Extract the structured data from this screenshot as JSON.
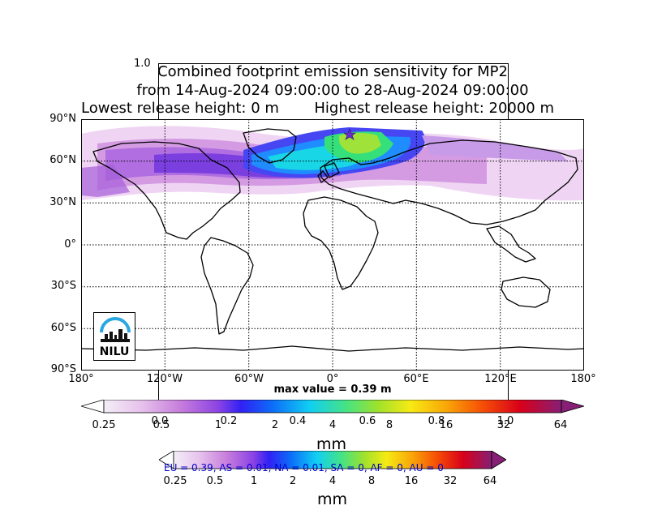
{
  "ghost_axis_top": "1.0",
  "title": {
    "line1": "Combined footprint emission sensitivity for MP2",
    "line2": "from 14-Aug-2024 09:00:00 to 28-Aug-2024 09:00:00",
    "line3_left": "Lowest release height: 0 m",
    "line3_right": "Highest release height: 20000 m"
  },
  "map": {
    "lat_labels": [
      "90°N",
      "60°N",
      "30°N",
      "0°",
      "30°S",
      "60°S",
      "90°S"
    ],
    "lon_labels": [
      "180°",
      "120°W",
      "60°W",
      "0°",
      "60°E",
      "120°E",
      "180°"
    ],
    "max_value": "max value = 0.39 m",
    "logo_text": "NILU",
    "logo_icon": "nilu-logo-icon",
    "plume_colors": [
      "#e9c6ee",
      "#c06ad6",
      "#7b3fe0",
      "#3a2cf5",
      "#1f8cff",
      "#19d6e6",
      "#35e07a",
      "#9ee23a"
    ]
  },
  "colorbar_main": {
    "ticks": [
      "0.25",
      "0.5",
      "1",
      "2",
      "4",
      "8",
      "16",
      "32",
      "64"
    ],
    "unit": "mm",
    "colors": [
      "#f4eef8",
      "#e7c3ec",
      "#c67bdc",
      "#8c43e4",
      "#3120f4",
      "#0c6ff8",
      "#10cff3",
      "#46e383",
      "#a0e22b",
      "#f6ea14",
      "#f9a507",
      "#f54c06",
      "#d8001a",
      "#861f75"
    ]
  },
  "ghost_axis_ticks": [
    "0.0",
    "0.2",
    "0.4",
    "0.6",
    "0.8",
    "1.0"
  ],
  "colorbar_second": {
    "ticks": [
      "0.25",
      "0.5",
      "1",
      "2",
      "4",
      "8",
      "16",
      "32",
      "64"
    ],
    "unit": "mm"
  },
  "region_summary": "EU = 0.39,  AS = 0.01,  NA = 0.01,  SA = 0,  AF = 0,  AU = 0",
  "colors": {
    "region_text": "#0000cc",
    "star": "#6a2fc8"
  }
}
